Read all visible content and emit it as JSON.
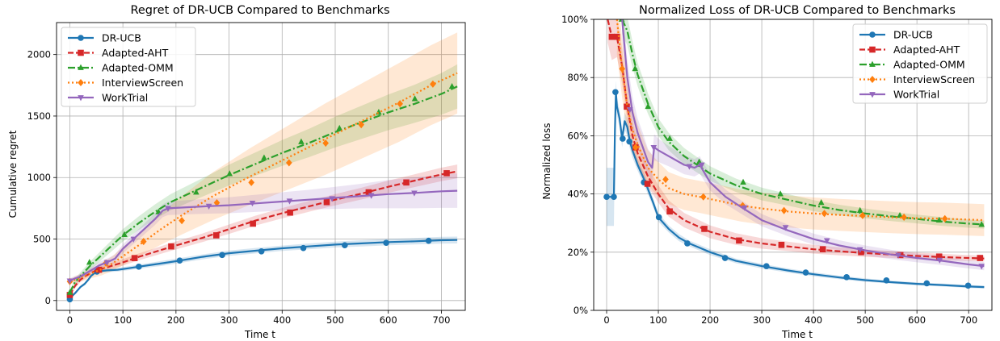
{
  "colors": {
    "DR-UCB": "#1f77b4",
    "Adapted-AHT": "#d62728",
    "Adapted-OMM": "#2ca02c",
    "InterviewScreen": "#ff7f0e",
    "WorkTrial": "#9467bd"
  },
  "chart_data": [
    {
      "type": "line",
      "title": "Regret of DR-UCB Compared to Benchmarks",
      "xlabel": "Time t",
      "ylabel": "Cumulative regret",
      "xlim": [
        -25,
        745
      ],
      "ylim": [
        -80,
        2260
      ],
      "xticks": [
        0,
        100,
        200,
        300,
        400,
        500,
        600,
        700
      ],
      "yticks": [
        0,
        500,
        1000,
        1500,
        2000
      ],
      "grid": true,
      "legend": "top-left",
      "series": [
        {
          "name": "DR-UCB",
          "marker": "circle",
          "dash": "solid",
          "x": [
            0,
            5,
            10,
            15,
            20,
            28,
            35,
            40,
            50,
            70,
            90,
            110,
            130,
            150,
            170,
            200,
            250,
            300,
            350,
            400,
            450,
            500,
            550,
            600,
            650,
            700,
            730
          ],
          "y": [
            10,
            40,
            60,
            85,
            110,
            135,
            170,
            200,
            235,
            245,
            250,
            262,
            275,
            288,
            300,
            320,
            355,
            385,
            405,
            425,
            440,
            455,
            465,
            475,
            482,
            490,
            492
          ],
          "band": [
            10,
            10,
            10,
            10,
            10,
            12,
            12,
            12,
            12,
            14,
            15,
            16,
            17,
            18,
            20,
            20,
            20,
            22,
            22,
            22,
            24,
            24,
            26,
            26,
            26,
            28,
            28
          ],
          "markers_x": [
            0,
            51,
            130,
            207,
            287,
            361,
            440,
            518,
            596,
            676
          ],
          "markers_y": [
            10,
            235,
            275,
            325,
            370,
            400,
            427,
            450,
            469,
            486
          ]
        },
        {
          "name": "Adapted-AHT",
          "marker": "square",
          "dash": "dashed",
          "x": [
            0,
            10,
            20,
            30,
            40,
            50,
            70,
            100,
            130,
            160,
            190,
            250,
            300,
            350,
            400,
            450,
            500,
            550,
            600,
            650,
            700,
            730
          ],
          "y": [
            45,
            120,
            170,
            200,
            225,
            245,
            270,
            310,
            355,
            395,
            435,
            510,
            580,
            650,
            710,
            765,
            820,
            870,
            925,
            975,
            1025,
            1050
          ],
          "band": [
            20,
            20,
            20,
            20,
            22,
            22,
            24,
            26,
            28,
            30,
            32,
            35,
            38,
            40,
            42,
            44,
            46,
            48,
            50,
            52,
            55,
            56
          ],
          "markers_x": [
            0,
            55,
            122,
            191,
            276,
            345,
            415,
            484,
            563,
            634,
            710
          ],
          "markers_y": [
            45,
            250,
            345,
            440,
            530,
            625,
            715,
            800,
            880,
            960,
            1035
          ]
        },
        {
          "name": "Adapted-OMM",
          "marker": "triangle-up",
          "dash": "dashdot",
          "x": [
            0,
            10,
            20,
            40,
            60,
            80,
            100,
            130,
            160,
            190,
            250,
            300,
            350,
            400,
            450,
            500,
            550,
            600,
            650,
            700,
            730
          ],
          "y": [
            65,
            150,
            200,
            290,
            370,
            450,
            530,
            630,
            720,
            800,
            920,
            1020,
            1110,
            1200,
            1280,
            1370,
            1450,
            1530,
            1600,
            1680,
            1740
          ],
          "band": [
            20,
            25,
            30,
            35,
            40,
            45,
            50,
            55,
            60,
            65,
            75,
            85,
            95,
            105,
            115,
            125,
            135,
            145,
            155,
            170,
            180
          ],
          "markers_x": [
            0,
            37,
            103,
            167,
            238,
            301,
            366,
            436,
            508,
            582,
            650,
            720
          ],
          "markers_y": [
            65,
            310,
            535,
            720,
            880,
            1030,
            1160,
            1290,
            1400,
            1530,
            1640,
            1740
          ]
        },
        {
          "name": "InterviewScreen",
          "marker": "diamond",
          "dash": "dotted",
          "x": [
            0,
            10,
            20,
            40,
            60,
            80,
            100,
            140,
            170,
            210,
            270,
            340,
            410,
            480,
            550,
            620,
            680,
            730
          ],
          "y": [
            155,
            170,
            185,
            220,
            255,
            300,
            360,
            480,
            575,
            690,
            850,
            1010,
            1160,
            1310,
            1460,
            1610,
            1750,
            1850
          ],
          "band": [
            20,
            25,
            30,
            40,
            50,
            60,
            75,
            100,
            125,
            155,
            195,
            230,
            260,
            290,
            305,
            320,
            325,
            330
          ],
          "markers_x": [
            0,
            68,
            139,
            211,
            277,
            342,
            413,
            482,
            549,
            622,
            684
          ],
          "markers_y": [
            155,
            305,
            480,
            650,
            795,
            960,
            1120,
            1280,
            1430,
            1600,
            1760
          ]
        },
        {
          "name": "WorkTrial",
          "marker": "triangle-down",
          "dash": "solid",
          "x": [
            0,
            10,
            20,
            40,
            55,
            70,
            85,
            100,
            120,
            140,
            160,
            175,
            185,
            250,
            300,
            350,
            400,
            450,
            500,
            550,
            600,
            650,
            700,
            730
          ],
          "y": [
            160,
            180,
            195,
            245,
            285,
            310,
            340,
            420,
            500,
            580,
            660,
            730,
            750,
            765,
            775,
            790,
            805,
            820,
            835,
            850,
            865,
            875,
            888,
            893
          ],
          "band": [
            20,
            20,
            22,
            25,
            28,
            30,
            33,
            36,
            40,
            44,
            48,
            52,
            55,
            60,
            65,
            70,
            75,
            80,
            90,
            100,
            115,
            125,
            135,
            140
          ],
          "markers_x": [
            0,
            70,
            120,
            185,
            262,
            344,
            414,
            494,
            568,
            649
          ],
          "markers_y": [
            160,
            310,
            500,
            750,
            768,
            793,
            810,
            830,
            855,
            875
          ]
        }
      ]
    },
    {
      "type": "line",
      "title": "Normalized Loss of DR-UCB Compared to Benchmarks",
      "xlabel": "Time t",
      "ylabel": "Normalized loss",
      "xlim": [
        -25,
        745
      ],
      "ylim": [
        0,
        100
      ],
      "xticks": [
        0,
        100,
        200,
        300,
        400,
        500,
        600,
        700
      ],
      "yticks": [
        0,
        20,
        40,
        60,
        80,
        100
      ],
      "ytick_labels": [
        "0%",
        "20%",
        "40%",
        "60%",
        "80%",
        "100%"
      ],
      "grid": true,
      "legend": "top-right",
      "series": [
        {
          "name": "DR-UCB",
          "marker": "circle",
          "dash": "solid",
          "x": [
            0,
            10,
            14,
            16,
            18,
            20,
            25,
            30,
            35,
            40,
            45,
            50,
            60,
            75,
            90,
            100,
            120,
            140,
            160,
            180,
            200,
            250,
            300,
            350,
            400,
            450,
            500,
            550,
            600,
            650,
            700,
            730
          ],
          "y": [
            39,
            39,
            39,
            62,
            75,
            70,
            66,
            59,
            65,
            63,
            58,
            55,
            50,
            44,
            37,
            32,
            28,
            25,
            23,
            21.5,
            20,
            17,
            15.2,
            13.7,
            12.4,
            11.3,
            10.4,
            9.7,
            9.1,
            8.7,
            8.2,
            8.0
          ],
          "band": [
            10,
            10,
            10,
            6,
            4,
            3,
            3,
            3,
            3,
            3,
            2.5,
            2.5,
            2,
            2,
            1.5,
            1.5,
            1.2,
            1.2,
            1,
            1,
            1,
            0.8,
            0.8,
            0.7,
            0.7,
            0.6,
            0.6,
            0.5,
            0.5,
            0.5,
            0.5,
            0.5
          ],
          "markers_x": [
            0,
            14,
            17,
            31,
            44,
            72,
            101,
            156,
            229,
            309,
            385,
            464,
            541,
            619,
            699
          ],
          "markers_y": [
            39,
            39,
            75,
            59,
            58,
            44,
            32,
            23,
            18,
            15.2,
            13,
            11.4,
            10.3,
            9.3,
            8.5
          ]
        },
        {
          "name": "Adapted-AHT",
          "marker": "square",
          "dash": "dashed",
          "x": [
            2,
            10,
            20,
            30,
            40,
            50,
            60,
            80,
            100,
            120,
            150,
            200,
            250,
            300,
            350,
            400,
            450,
            500,
            550,
            600,
            650,
            700,
            730
          ],
          "y": [
            100,
            94,
            94,
            84,
            70,
            60,
            54,
            46,
            40,
            35,
            31,
            27,
            24.5,
            23,
            22,
            21,
            20.3,
            19.7,
            19.2,
            18.7,
            18.3,
            18,
            17.8
          ],
          "band": [
            8,
            8,
            7,
            6,
            5,
            4.5,
            4,
            3.5,
            3,
            2.8,
            2.5,
            2.2,
            2,
            1.8,
            1.6,
            1.5,
            1.4,
            1.3,
            1.2,
            1.2,
            1.1,
            1,
            1
          ],
          "markers_x": [
            10,
            20,
            39,
            56,
            79,
            122,
            189,
            256,
            338,
            418,
            492,
            568,
            643,
            722
          ],
          "markers_y": [
            94,
            94,
            70,
            56,
            43.5,
            34,
            28,
            24,
            22.5,
            21,
            20,
            19,
            18.5,
            18
          ]
        },
        {
          "name": "Adapted-OMM",
          "marker": "triangle-up",
          "dash": "dashdot",
          "x": [
            30,
            40,
            50,
            60,
            70,
            80,
            100,
            120,
            150,
            200,
            250,
            300,
            350,
            400,
            450,
            500,
            550,
            600,
            650,
            700,
            730
          ],
          "y": [
            100,
            96,
            88,
            81,
            76,
            71,
            63,
            58,
            53,
            47,
            43,
            40,
            38,
            36,
            34.5,
            33.3,
            32.3,
            31.4,
            30.5,
            29.8,
            29.5
          ],
          "band": [
            5,
            5,
            4.5,
            4,
            4,
            3.5,
            3,
            3,
            2.8,
            2.5,
            2.3,
            2.2,
            2,
            1.9,
            1.8,
            1.7,
            1.6,
            1.5,
            1.5,
            1.4,
            1.4
          ],
          "markers_x": [
            29,
            55,
            80,
            122,
            179,
            264,
            336,
            415,
            490,
            567,
            643,
            725
          ],
          "markers_y": [
            100,
            83,
            70,
            59,
            51,
            44,
            40,
            37,
            34.3,
            32.6,
            31,
            29.5
          ]
        },
        {
          "name": "InterviewScreen",
          "marker": "diamond",
          "dash": "dotted",
          "x": [
            20,
            30,
            40,
            50,
            60,
            70,
            80,
            100,
            120,
            150,
            180,
            220,
            260,
            300,
            350,
            400,
            450,
            500,
            550,
            600,
            650,
            700,
            730
          ],
          "y": [
            100,
            83,
            70,
            62,
            57,
            53,
            49,
            45,
            42,
            40,
            39,
            37.5,
            36,
            35,
            34,
            33.3,
            32.8,
            32.4,
            32,
            31.7,
            31.5,
            31.2,
            31
          ],
          "band": [
            12,
            10,
            9,
            8,
            7,
            6.5,
            6,
            6,
            5.5,
            5.5,
            5.5,
            5.5,
            5.5,
            5.5,
            5.5,
            5.5,
            5.5,
            5.5,
            5.5,
            5.5,
            5.5,
            5.5,
            5.5
          ],
          "markers_x": [
            30,
            56,
            114,
            187,
            263,
            343,
            421,
            495,
            575,
            654
          ],
          "markers_y": [
            83,
            56,
            45,
            39,
            36,
            34.3,
            33.3,
            32.6,
            32,
            31.5
          ]
        },
        {
          "name": "WorkTrial",
          "marker": "triangle-down",
          "dash": "solid",
          "x": [
            30,
            40,
            50,
            60,
            70,
            80,
            88,
            92,
            100,
            120,
            150,
            170,
            180,
            200,
            230,
            260,
            300,
            350,
            400,
            450,
            500,
            550,
            600,
            650,
            700,
            730
          ],
          "y": [
            100,
            80,
            68,
            61,
            56,
            51,
            49,
            56,
            55,
            53,
            50,
            49,
            50,
            44,
            39,
            35.5,
            31,
            27.5,
            24.5,
            22.3,
            20.6,
            19.2,
            18,
            17,
            15.8,
            15.2
          ],
          "band": [
            6,
            6,
            5.5,
            5,
            5,
            4.5,
            4.5,
            4.5,
            4,
            3.5,
            3.2,
            3,
            3,
            2.8,
            2.5,
            2.3,
            2.1,
            2,
            1.9,
            1.8,
            1.7,
            1.6,
            1.5,
            1.5,
            1.4,
            1.4
          ],
          "markers_x": [
            45,
            91,
            160,
            184,
            267,
            346,
            426,
            490,
            564,
            644,
            725
          ],
          "markers_y": [
            69,
            56,
            49.5,
            50,
            35.3,
            28.5,
            24,
            20.9,
            19,
            17.3,
            15.2
          ]
        }
      ]
    }
  ]
}
